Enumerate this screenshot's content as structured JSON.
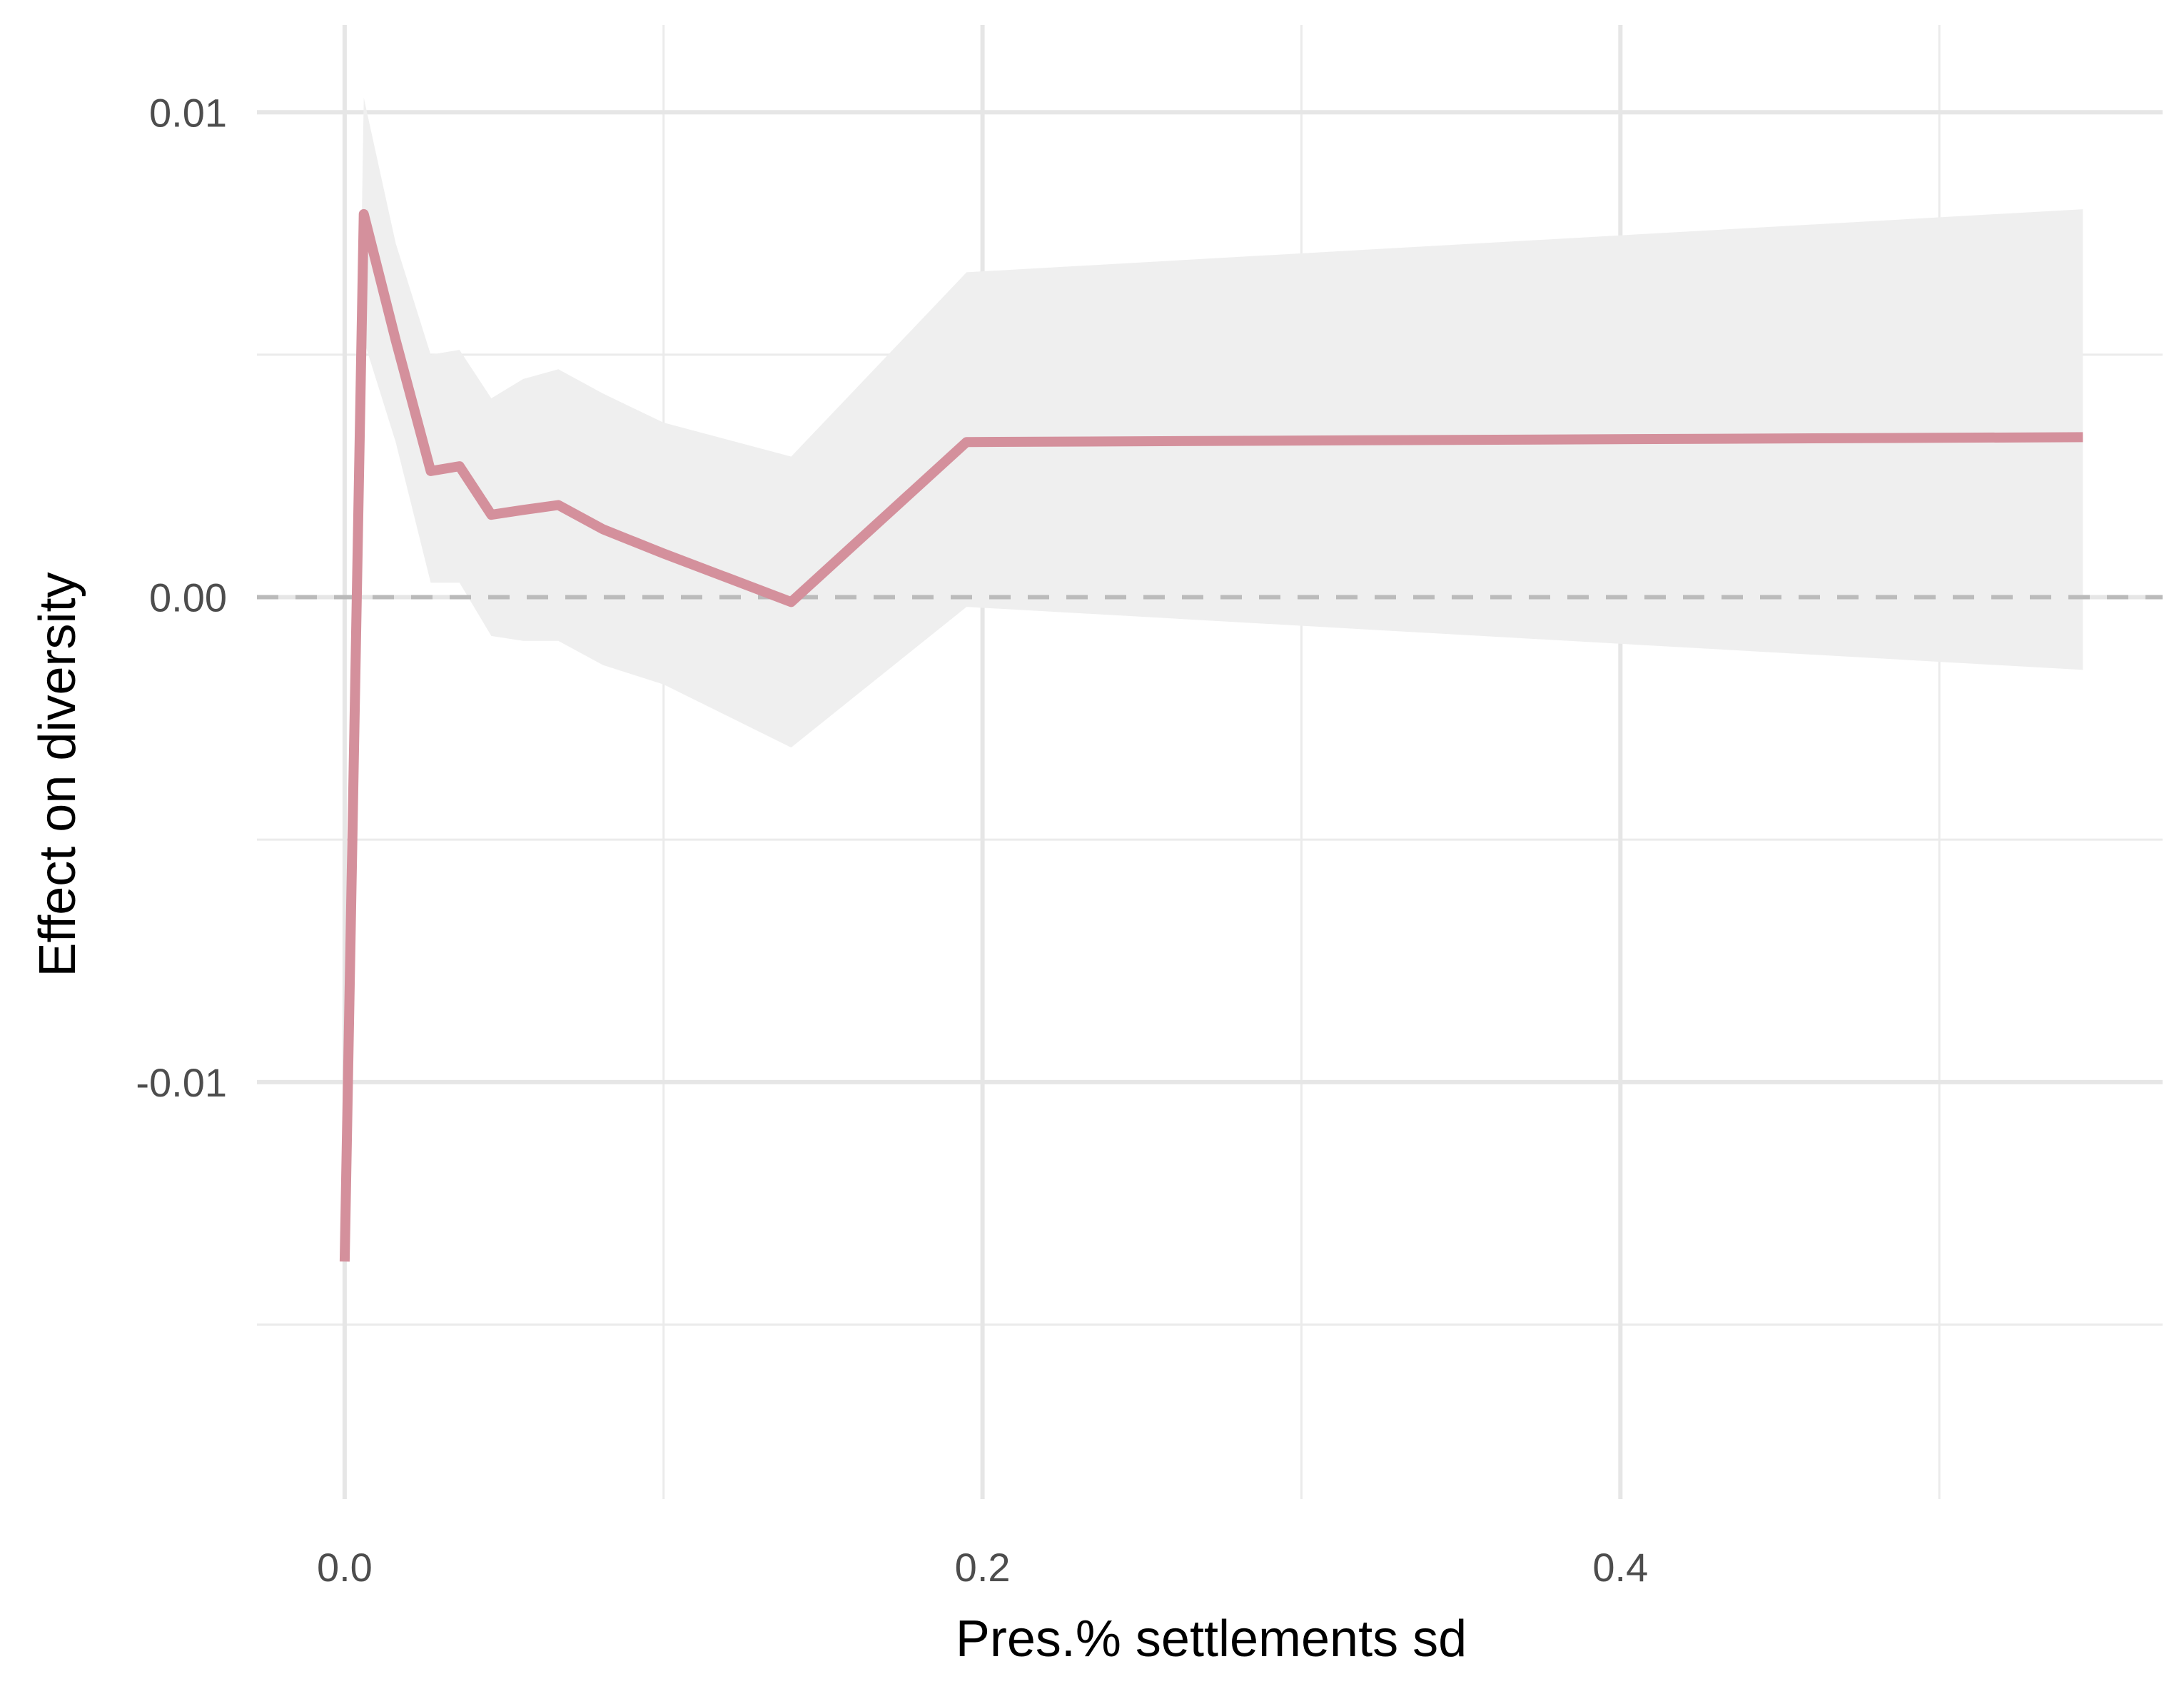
{
  "chart_data": {
    "type": "line",
    "title": "",
    "xlabel": "Pres.% settlements sd",
    "ylabel": "Effect on diversity",
    "xlim": [
      -0.0275,
      0.57
    ],
    "ylim": [
      -0.0186,
      0.0118
    ],
    "x_ticks": [
      0.0,
      0.2,
      0.4
    ],
    "x_tick_labels": [
      "0.0",
      "0.2",
      "0.4"
    ],
    "x_minor_gridlines": [
      0.1,
      0.3,
      0.5
    ],
    "y_ticks": [
      -0.01,
      0.0,
      0.01
    ],
    "y_tick_labels": [
      "-0.01",
      "0.00",
      "0.01"
    ],
    "y_minor_gridlines": [
      -0.015,
      -0.005,
      0.005
    ],
    "grid": true,
    "reference_line": {
      "y": 0.0,
      "style": "dashed",
      "color": "#b3b3b3"
    },
    "legend": "none",
    "series": [
      {
        "color": "#d4909c",
        "ribbon_color": "#efefef",
        "points": [
          {
            "x": 0.0,
            "y": -0.0137,
            "lower": -0.0137,
            "upper": -0.0137
          },
          {
            "x": 0.006,
            "y": 0.0079,
            "lower": 0.0053,
            "upper": 0.0103
          },
          {
            "x": 0.016,
            "y": 0.0053,
            "lower": 0.0032,
            "upper": 0.0073
          },
          {
            "x": 0.027,
            "y": 0.0026,
            "lower": 0.0003,
            "upper": 0.005
          },
          {
            "x": 0.036,
            "y": 0.0027,
            "lower": 0.0003,
            "upper": 0.0051
          },
          {
            "x": 0.046,
            "y": 0.0017,
            "lower": -0.0008,
            "upper": 0.0041
          },
          {
            "x": 0.056,
            "y": 0.0018,
            "lower": -0.0009,
            "upper": 0.0045
          },
          {
            "x": 0.067,
            "y": 0.0019,
            "lower": -0.0009,
            "upper": 0.0047
          },
          {
            "x": 0.081,
            "y": 0.0014,
            "lower": -0.0014,
            "upper": 0.0042
          },
          {
            "x": 0.1,
            "y": 0.0009,
            "lower": -0.0018,
            "upper": 0.0036
          },
          {
            "x": 0.14,
            "y": -0.0001,
            "lower": -0.0031,
            "upper": 0.0029
          },
          {
            "x": 0.195,
            "y": 0.0032,
            "lower": -0.0002,
            "upper": 0.0067
          },
          {
            "x": 0.545,
            "y": 0.0033,
            "lower": -0.0015,
            "upper": 0.008
          }
        ]
      }
    ]
  }
}
